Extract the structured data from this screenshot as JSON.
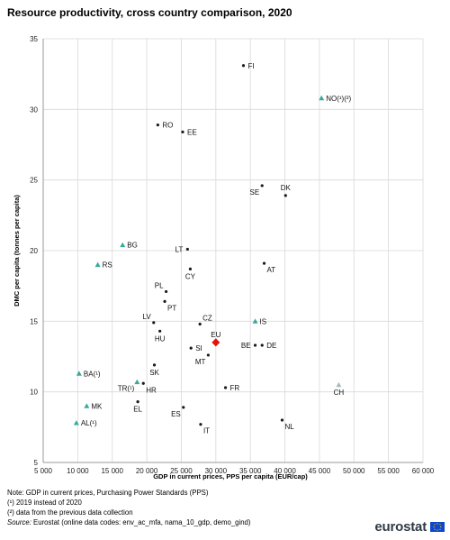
{
  "title": "Resource productivity, cross country comparison, 2020",
  "notes": {
    "line1": "Note: GDP in current prices, Purchasing Power Standards (PPS)",
    "line2": "(¹) 2019 instead of 2020",
    "line3": "(²) data from the previous data collection",
    "source_label": "Source:",
    "source_text": " Eurostat (online data codes: env_ac_mfa, nama_10_gdp, demo_gind)"
  },
  "logo_text": "eurostat",
  "colors": {
    "eu": "#e3120b",
    "dark": "#1a1a1a",
    "teal": "#3aa89a",
    "grey": "#aab7bd",
    "grid": "#d9d9d9"
  },
  "chart_data": {
    "type": "scatter",
    "title": "Resource productivity, cross country comparison, 2020",
    "xlabel": "GDP in current prices, PPS per capita (EUR/cap)",
    "ylabel": "DMC per capita (tonnes per capita)",
    "xlim": [
      5000,
      60000
    ],
    "ylim": [
      5,
      35
    ],
    "x_ticks": [
      5000,
      10000,
      15000,
      20000,
      25000,
      30000,
      35000,
      40000,
      45000,
      50000,
      55000,
      60000
    ],
    "x_tick_labels": [
      "5 000",
      "10 000",
      "15 000",
      "20 000",
      "25 000",
      "30 000",
      "35 000",
      "40 000",
      "45 000",
      "50 000",
      "55 000",
      "60 000"
    ],
    "y_ticks": [
      5,
      10,
      15,
      20,
      25,
      30,
      35
    ],
    "y_tick_labels": [
      "5",
      "10",
      "15",
      "20",
      "25",
      "30",
      "35"
    ],
    "grid": true,
    "points": [
      {
        "label": "FI",
        "x": 34000,
        "y": 33.1,
        "group": "member",
        "pos": "r"
      },
      {
        "label": "NO(¹)(²)",
        "x": 45300,
        "y": 30.8,
        "group": "efta",
        "pos": "r"
      },
      {
        "label": "RO",
        "x": 21600,
        "y": 28.9,
        "group": "member",
        "pos": "r"
      },
      {
        "label": "EE",
        "x": 25200,
        "y": 28.4,
        "group": "member",
        "pos": "r"
      },
      {
        "label": "SE",
        "x": 36700,
        "y": 24.6,
        "group": "member",
        "pos": "bl"
      },
      {
        "label": "DK",
        "x": 40100,
        "y": 23.9,
        "group": "member",
        "pos": "t"
      },
      {
        "label": "BG",
        "x": 16500,
        "y": 20.4,
        "group": "candidate",
        "pos": "r"
      },
      {
        "label": "LT",
        "x": 25900,
        "y": 20.1,
        "group": "member",
        "pos": "l"
      },
      {
        "label": "RS",
        "x": 12900,
        "y": 19.0,
        "group": "candidate",
        "pos": "r"
      },
      {
        "label": "AT",
        "x": 37000,
        "y": 19.1,
        "group": "member",
        "pos": "br"
      },
      {
        "label": "CY",
        "x": 26300,
        "y": 18.7,
        "group": "member",
        "pos": "b"
      },
      {
        "label": "PL",
        "x": 22800,
        "y": 17.1,
        "group": "member",
        "pos": "tl"
      },
      {
        "label": "PT",
        "x": 22600,
        "y": 16.4,
        "group": "member",
        "pos": "br"
      },
      {
        "label": "LV",
        "x": 21000,
        "y": 14.9,
        "group": "member",
        "pos": "tl"
      },
      {
        "label": "CZ",
        "x": 27700,
        "y": 14.8,
        "group": "member",
        "pos": "tr"
      },
      {
        "label": "IS",
        "x": 35700,
        "y": 15.0,
        "group": "efta",
        "pos": "r"
      },
      {
        "label": "HU",
        "x": 21900,
        "y": 14.3,
        "group": "member",
        "pos": "b"
      },
      {
        "label": "EU",
        "x": 30000,
        "y": 13.5,
        "group": "eu",
        "pos": "t"
      },
      {
        "label": "SI",
        "x": 26400,
        "y": 13.1,
        "group": "member",
        "pos": "r"
      },
      {
        "label": "BE",
        "x": 35700,
        "y": 13.3,
        "group": "member",
        "pos": "l"
      },
      {
        "label": "DE",
        "x": 36700,
        "y": 13.3,
        "group": "member",
        "pos": "r"
      },
      {
        "label": "MT",
        "x": 28900,
        "y": 12.6,
        "group": "member",
        "pos": "bl"
      },
      {
        "label": "SK",
        "x": 21100,
        "y": 11.9,
        "group": "member",
        "pos": "b"
      },
      {
        "label": "BA(¹)",
        "x": 10200,
        "y": 11.3,
        "group": "candidate",
        "pos": "r"
      },
      {
        "label": "TR(¹)",
        "x": 18600,
        "y": 10.7,
        "group": "candidate",
        "pos": "bl"
      },
      {
        "label": "HR",
        "x": 19500,
        "y": 10.6,
        "group": "member",
        "pos": "br"
      },
      {
        "label": "FR",
        "x": 31400,
        "y": 10.3,
        "group": "member",
        "pos": "r"
      },
      {
        "label": "CH",
        "x": 47800,
        "y": 10.5,
        "group": "efta_grey",
        "pos": "b"
      },
      {
        "label": "EL",
        "x": 18700,
        "y": 9.3,
        "group": "member",
        "pos": "b"
      },
      {
        "label": "MK",
        "x": 11300,
        "y": 9.0,
        "group": "candidate",
        "pos": "r"
      },
      {
        "label": "ES",
        "x": 25300,
        "y": 8.9,
        "group": "member",
        "pos": "bl"
      },
      {
        "label": "NL",
        "x": 39600,
        "y": 8.0,
        "group": "member",
        "pos": "br"
      },
      {
        "label": "AL(¹)",
        "x": 9800,
        "y": 7.8,
        "group": "candidate",
        "pos": "r"
      },
      {
        "label": "IT",
        "x": 27800,
        "y": 7.7,
        "group": "member",
        "pos": "br"
      }
    ]
  }
}
